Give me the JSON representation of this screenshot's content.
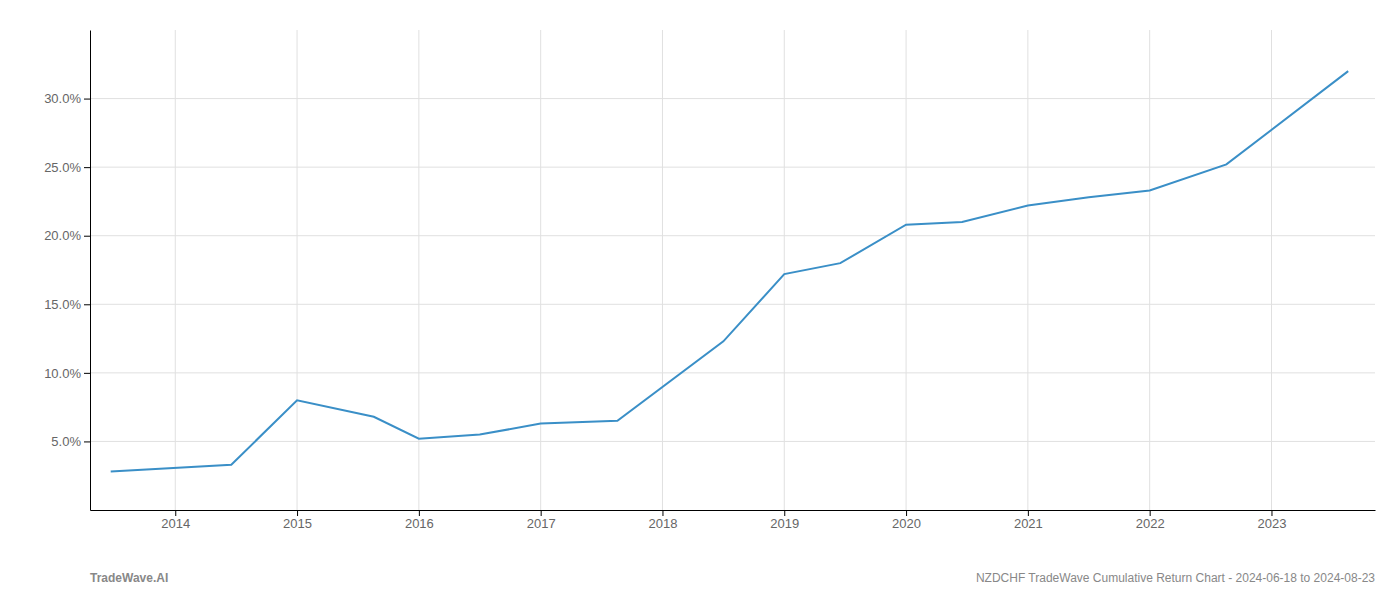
{
  "chart_data": {
    "type": "line",
    "title": "NZDCHF TradeWave Cumulative Return Chart - 2024-06-18 to 2024-08-23",
    "annotations": [
      "TradeWave.AI"
    ],
    "x": [
      2013.47,
      2014.46,
      2015.0,
      2015.63,
      2016.0,
      2016.5,
      2017.0,
      2017.63,
      2018.5,
      2019.0,
      2019.46,
      2020.0,
      2020.46,
      2021.0,
      2021.5,
      2022.0,
      2022.63,
      2023.63
    ],
    "values": [
      2.8,
      3.3,
      8.0,
      6.8,
      5.2,
      5.5,
      6.3,
      6.5,
      12.3,
      17.2,
      18.0,
      20.8,
      21.0,
      22.2,
      22.8,
      23.3,
      25.2,
      32.0
    ],
    "color": "#3a8fc7",
    "xlim": [
      2013.3,
      2023.85
    ],
    "ylim": [
      0,
      35
    ],
    "xticks": [
      2014,
      2015,
      2016,
      2017,
      2018,
      2019,
      2020,
      2021,
      2022,
      2023
    ],
    "yticks": [
      {
        "value": 5.0,
        "label": "5.0%"
      },
      {
        "value": 10.0,
        "label": "10.0%"
      },
      {
        "value": 15.0,
        "label": "15.0%"
      },
      {
        "value": 20.0,
        "label": "20.0%"
      },
      {
        "value": 25.0,
        "label": "25.0%"
      },
      {
        "value": 30.0,
        "label": "30.0%"
      }
    ],
    "grid": true
  }
}
